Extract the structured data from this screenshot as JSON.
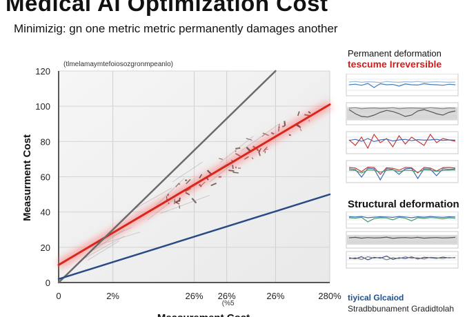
{
  "title": "Medical AI Optimization Cost",
  "subtitle": "Minimizig: gn one metric metric permanently damages another",
  "chart_data": {
    "type": "line",
    "title": "Medical AI Optimization Cost",
    "annotation": "(tlmelamaymtefoiosozgronmpeanlo)",
    "xlabel": "Measurement Cost",
    "ylabel": "Measurment Cost",
    "ylim": [
      0,
      120
    ],
    "xlim": [
      0,
      100
    ],
    "y_ticks": [
      0,
      20,
      40,
      60,
      80,
      100,
      120
    ],
    "y_tick_labels": [
      "0",
      "20",
      "40",
      "60",
      "80",
      "100",
      "120"
    ],
    "x_ticks": [
      0,
      20,
      50,
      62,
      80,
      100
    ],
    "x_tick_labels": [
      "0",
      "2%",
      "26%",
      "26%",
      "26%",
      "280%"
    ],
    "x_tick_sublabel": "(%5",
    "series": [
      {
        "name": "red",
        "color": "#d8261d",
        "x": [
          0,
          100
        ],
        "y": [
          10,
          101
        ]
      },
      {
        "name": "gray",
        "color": "#6a6a6a",
        "x": [
          0,
          80
        ],
        "y": [
          0,
          120
        ]
      },
      {
        "name": "blue",
        "color": "#2a4a85",
        "x": [
          0,
          100
        ],
        "y": [
          2,
          50
        ]
      }
    ]
  },
  "side_panel": {
    "header": "Permanent deformation",
    "header_sub": "tescume Irreversible",
    "structural_label": "Structural deformation",
    "footer_line1": "tiyical  Glcaiod",
    "footer_line2": "Stradbbunament Gradidtolah",
    "mini_charts_top": [
      {
        "series": [
          [
            40,
            42,
            38,
            45,
            30,
            44,
            40,
            41,
            35,
            43,
            40,
            39,
            44,
            41,
            40,
            38,
            42,
            40
          ],
          [
            50,
            52,
            49,
            51,
            50,
            48,
            52,
            50,
            49,
            51,
            50,
            52,
            49,
            50,
            51,
            50,
            49,
            50
          ]
        ],
        "colors": [
          "#3f7fbf",
          "#9bb7d4"
        ],
        "band": false
      },
      {
        "series": [
          [
            55,
            40,
            30,
            28,
            35,
            45,
            52,
            48,
            40,
            30,
            35,
            50,
            55,
            48,
            40,
            35,
            45,
            50
          ],
          [
            60,
            62,
            58,
            60,
            61,
            59,
            60,
            62,
            58,
            60,
            61,
            60,
            59,
            62,
            60,
            58,
            61,
            60
          ]
        ],
        "colors": [
          "#555555",
          "#888888"
        ],
        "band": true
      },
      {
        "series": [
          [
            50,
            30,
            60,
            20,
            70,
            40,
            55,
            25,
            65,
            35,
            60,
            45,
            30,
            70,
            40,
            55,
            50,
            45
          ],
          [
            48,
            52,
            45,
            55,
            44,
            50,
            53,
            46,
            50,
            52,
            47,
            51,
            49,
            50,
            52,
            48,
            50,
            49
          ]
        ],
        "colors": [
          "#c33a3a",
          "#3a6bb0"
        ],
        "band": false
      },
      {
        "series": [
          [
            50,
            48,
            20,
            52,
            50,
            10,
            50,
            48,
            30,
            50,
            52,
            15,
            50,
            49,
            25,
            50,
            48,
            50
          ],
          [
            55,
            53,
            40,
            56,
            55,
            30,
            54,
            52,
            45,
            55,
            54,
            35,
            55,
            53,
            42,
            54,
            55,
            53
          ],
          [
            45,
            44,
            35,
            46,
            45,
            38,
            44,
            46,
            40,
            45,
            44,
            38,
            46,
            45,
            41,
            44,
            45,
            46
          ]
        ],
        "colors": [
          "#3a6bb0",
          "#c33a3a",
          "#4a9a6a"
        ],
        "band": false
      }
    ],
    "mini_charts_bottom": [
      {
        "series": [
          [
            50,
            48,
            52,
            30,
            46,
            50,
            49,
            40,
            52,
            48,
            35,
            50,
            47,
            51,
            49,
            45,
            50,
            48
          ],
          [
            55,
            54,
            56,
            50,
            53,
            55,
            54,
            52,
            56,
            54,
            50,
            55,
            53,
            56,
            54,
            52,
            55,
            54
          ]
        ],
        "colors": [
          "#4a9a6a",
          "#3a6bb0"
        ],
        "band": false
      },
      {
        "series": [
          [
            50,
            52,
            48,
            51,
            49,
            50,
            53,
            47,
            50,
            51,
            49,
            52,
            48,
            50,
            51,
            49,
            50,
            52
          ]
        ],
        "colors": [
          "#555555"
        ],
        "band": true
      },
      {
        "series": [
          [
            50,
            45,
            55,
            40,
            52,
            48,
            58,
            42,
            50,
            46,
            54,
            44,
            52,
            50,
            47,
            53,
            49,
            51
          ],
          [
            45,
            50,
            42,
            55,
            48,
            52,
            40,
            50,
            46,
            54,
            48,
            50,
            44,
            52,
            50,
            46,
            51,
            49
          ]
        ],
        "colors": [
          "#2a4a85",
          "#7a7a7a"
        ],
        "band": false
      }
    ]
  }
}
